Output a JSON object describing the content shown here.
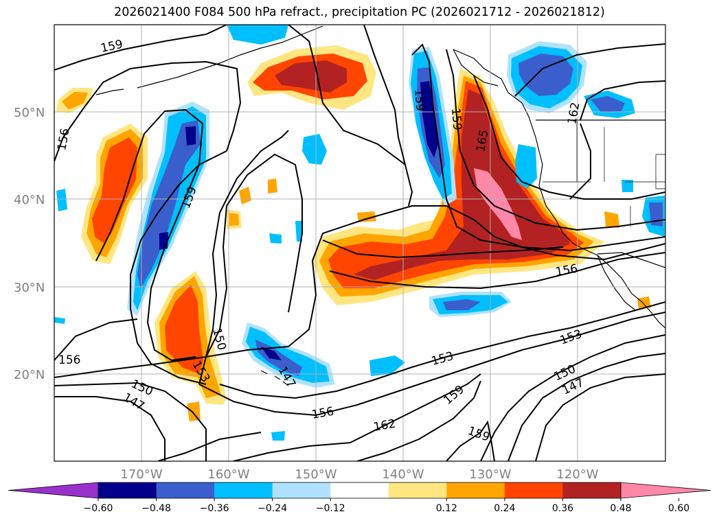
{
  "title": "2026021400 F084 500 hPa refract., precipitation PC (2026021712 - 2026021812)",
  "lat_labels": [
    "50°N",
    "40°N",
    "30°N",
    "20°N"
  ],
  "lon_labels": [
    "170°W",
    "160°W",
    "150°W",
    "140°W",
    "130°W",
    "120°W"
  ],
  "contour_labels": [
    "159",
    "156",
    "159",
    "150",
    "153",
    "156",
    "150",
    "147",
    "156",
    "162",
    "153",
    "159",
    "156",
    "159",
    "159",
    "165",
    "162",
    "153",
    "150",
    "147",
    "147",
    "159"
  ],
  "colorbar": {
    "ticks": [
      "−0.60",
      "−0.48",
      "−0.36",
      "−0.24",
      "−0.12",
      "0.12",
      "0.24",
      "0.36",
      "0.48",
      "0.60"
    ],
    "colors": [
      "#9932cc",
      "#00008b",
      "#3a5fcd",
      "#00bfff",
      "#b0e2ff",
      "#ffffff",
      "#ffe680",
      "#ffa500",
      "#ff4500",
      "#b22222",
      "#ff88a8"
    ]
  },
  "colors": {
    "neg_060": "#00008b",
    "neg_048": "#3a5fcd",
    "neg_036": "#00bfff",
    "neg_024": "#b0e2ff",
    "pos_012": "#ffe680",
    "pos_024": "#ffa500",
    "pos_036": "#ff4500",
    "pos_048": "#b22222",
    "pos_060": "#ff88a8"
  }
}
